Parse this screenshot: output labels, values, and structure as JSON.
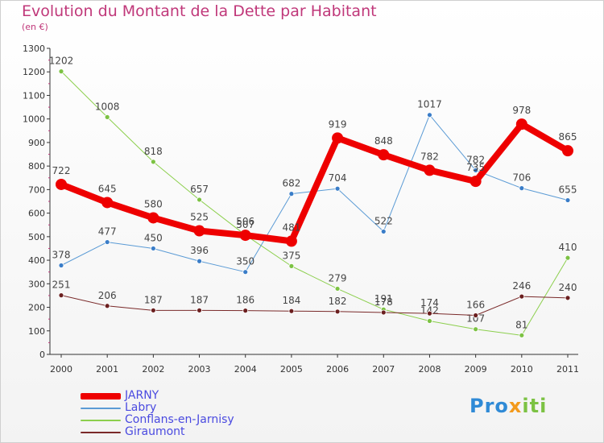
{
  "header": {
    "title": "Evolution du Montant de la Dette par Habitant",
    "subtitle": "(en €)"
  },
  "logo": {
    "part1": "Pro",
    "part2": "x",
    "part3": "iti"
  },
  "colors": {
    "title": "#c0387a",
    "axis": "#333333",
    "grid_tick": "#c0387a"
  },
  "chart_data": {
    "type": "line",
    "title": "Evolution du Montant de la Dette par Habitant",
    "ylabel": "(en €)",
    "xlabel": "",
    "ylim": [
      0,
      1300
    ],
    "yticks": [
      0,
      100,
      200,
      300,
      400,
      500,
      600,
      700,
      800,
      900,
      1000,
      1100,
      1200,
      1300
    ],
    "categories": [
      "2000",
      "2001",
      "2002",
      "2003",
      "2004",
      "2005",
      "2006",
      "2007",
      "2008",
      "2009",
      "2010",
      "2011"
    ],
    "legend": "bottom-left",
    "grid": false,
    "series": [
      {
        "name": "Conflans-en-Jarnisy",
        "color": "#8ccf4d",
        "dot": "#7cc243",
        "width": 1,
        "r": 3,
        "values": [
          1202,
          1008,
          818,
          657,
          507,
          375,
          279,
          191,
          142,
          107,
          81,
          410
        ],
        "labels": [
          "1202",
          "1008",
          "818",
          "657",
          "507",
          "375",
          "279",
          "191",
          "142",
          "107",
          "81",
          "410"
        ]
      },
      {
        "name": "Labry",
        "color": "#5b9bd5",
        "dot": "#3a7dc8",
        "width": 1,
        "r": 3,
        "values": [
          378,
          477,
          450,
          396,
          350,
          682,
          704,
          522,
          1017,
          782,
          706,
          655
        ],
        "labels": [
          "378",
          "477",
          "450",
          "396",
          "350",
          "682",
          "704",
          "522",
          "1017",
          "782",
          "706",
          "655"
        ]
      },
      {
        "name": "Giraumont",
        "color": "#7a2a2a",
        "dot": "#6b1f1f",
        "width": 1,
        "r": 3,
        "values": [
          251,
          206,
          187,
          187,
          186,
          184,
          182,
          178,
          174,
          166,
          246,
          240
        ],
        "labels": [
          "251",
          "206",
          "187",
          "187",
          "186",
          "184",
          "182",
          "178",
          "174",
          "166",
          "246",
          "240"
        ]
      },
      {
        "name": "JARNY",
        "color": "#ee0000",
        "dot": "#ee0000",
        "width": 8,
        "r": 7,
        "values": [
          722,
          645,
          580,
          525,
          506,
          481,
          919,
          848,
          782,
          735,
          978,
          865
        ],
        "labels": [
          "722",
          "645",
          "580",
          "525",
          "506",
          "481",
          "919",
          "848",
          "782",
          "735",
          "978",
          "865"
        ]
      }
    ],
    "legend_order": [
      "JARNY",
      "Labry",
      "Conflans-en-Jarnisy",
      "Giraumont"
    ]
  }
}
